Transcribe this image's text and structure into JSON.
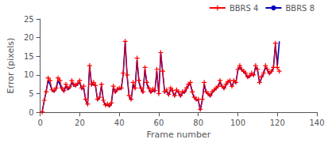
{
  "chart_data": {
    "type": "line",
    "xlabel": "Frame number",
    "ylabel": "Error (pixels)",
    "x": [
      1,
      2,
      3,
      4,
      5,
      6,
      7,
      8,
      9,
      10,
      11,
      12,
      13,
      14,
      15,
      16,
      17,
      18,
      19,
      20,
      21,
      22,
      23,
      24,
      25,
      26,
      27,
      28,
      29,
      30,
      31,
      32,
      33,
      34,
      35,
      36,
      37,
      38,
      39,
      40,
      41,
      42,
      43,
      44,
      45,
      46,
      47,
      48,
      49,
      50,
      51,
      52,
      53,
      54,
      55,
      56,
      57,
      58,
      59,
      60,
      61,
      62,
      63,
      64,
      65,
      66,
      67,
      68,
      69,
      70,
      71,
      72,
      73,
      74,
      75,
      76,
      77,
      78,
      79,
      80,
      81,
      82,
      83,
      84,
      85,
      86,
      87,
      88,
      89,
      90,
      91,
      92,
      93,
      94,
      95,
      96,
      97,
      98,
      99,
      100,
      101,
      102,
      103,
      104,
      105,
      106,
      107,
      108,
      109,
      110,
      111,
      112,
      113,
      114,
      115,
      116,
      117,
      118,
      119,
      120,
      121
    ],
    "series": [
      {
        "name": "BBRS 4",
        "color": "#ff0000",
        "marker": "+",
        "values": [
          0.1,
          3.2,
          5.5,
          9.2,
          8.5,
          6.0,
          5.8,
          6.5,
          9.2,
          8.5,
          6.5,
          5.8,
          7.5,
          6.5,
          6.8,
          8.5,
          7.5,
          7.2,
          7.8,
          8.5,
          6.5,
          7.0,
          3.5,
          2.2,
          12.5,
          7.5,
          8.0,
          7.2,
          3.5,
          4.0,
          7.5,
          3.2,
          2.0,
          2.2,
          1.8,
          2.5,
          7.0,
          5.5,
          6.2,
          6.5,
          6.5,
          10.5,
          19.0,
          10.0,
          4.5,
          3.5,
          8.0,
          6.5,
          14.5,
          8.5,
          6.5,
          5.5,
          12.0,
          8.0,
          6.5,
          5.5,
          6.2,
          5.8,
          11.5,
          5.0,
          16.0,
          11.0,
          5.5,
          6.0,
          4.8,
          6.5,
          5.8,
          4.5,
          6.0,
          5.5,
          4.5,
          5.5,
          5.5,
          6.5,
          7.5,
          8.0,
          5.5,
          4.0,
          3.5,
          3.5,
          0.8,
          3.5,
          8.0,
          5.5,
          5.0,
          4.5,
          5.5,
          6.0,
          6.5,
          7.0,
          8.5,
          7.0,
          6.5,
          7.5,
          8.2,
          8.5,
          7.0,
          8.5,
          8.0,
          11.5,
          12.5,
          11.5,
          11.0,
          10.5,
          9.5,
          9.8,
          10.5,
          10.0,
          12.5,
          11.5,
          8.0,
          9.5,
          10.5,
          12.5,
          11.5,
          10.5,
          11.0,
          12.0,
          18.5,
          12.0,
          11.0
        ]
      },
      {
        "name": "BBRS 8",
        "color": "#0000bb",
        "values": [
          0.1,
          3.0,
          5.5,
          8.5,
          7.5,
          5.8,
          5.5,
          6.0,
          8.5,
          7.5,
          6.0,
          5.5,
          7.0,
          6.0,
          6.5,
          8.0,
          7.0,
          7.0,
          7.5,
          8.0,
          6.2,
          6.5,
          3.2,
          2.0,
          12.5,
          7.2,
          7.5,
          7.0,
          3.2,
          3.8,
          7.2,
          3.0,
          1.8,
          2.0,
          1.5,
          2.2,
          6.8,
          5.2,
          6.0,
          6.2,
          6.2,
          10.2,
          19.0,
          9.5,
          4.2,
          3.2,
          7.5,
          6.2,
          14.0,
          8.0,
          6.2,
          5.2,
          11.5,
          7.5,
          6.2,
          5.2,
          5.8,
          5.5,
          11.0,
          4.8,
          16.0,
          10.5,
          5.2,
          5.8,
          4.5,
          6.2,
          5.5,
          4.2,
          5.8,
          5.2,
          4.2,
          5.2,
          5.2,
          6.2,
          7.2,
          7.5,
          5.2,
          3.8,
          3.2,
          3.2,
          0.5,
          3.2,
          7.5,
          5.2,
          4.8,
          4.2,
          5.2,
          5.8,
          6.2,
          6.8,
          8.2,
          6.8,
          6.2,
          7.2,
          8.0,
          8.2,
          6.8,
          8.2,
          7.8,
          11.2,
          12.2,
          11.2,
          10.8,
          10.2,
          9.2,
          9.5,
          10.2,
          9.8,
          12.2,
          11.2,
          7.8,
          9.2,
          10.2,
          12.2,
          11.2,
          10.2,
          10.8,
          11.8,
          18.2,
          12.5,
          19.0
        ]
      }
    ],
    "xlim": [
      0,
      140
    ],
    "ylim": [
      0,
      25
    ],
    "xticks": [
      0,
      20,
      40,
      60,
      80,
      100,
      120,
      140
    ],
    "yticks": [
      0,
      5,
      10,
      15,
      20,
      25
    ],
    "grid": false,
    "legend": "upper right"
  }
}
